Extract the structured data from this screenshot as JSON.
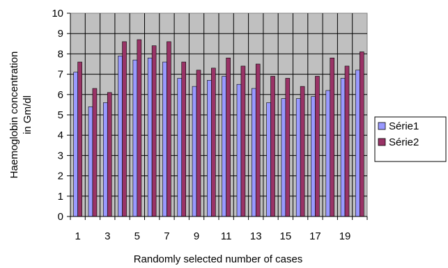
{
  "chart_data": {
    "type": "bar",
    "categories": [
      "1",
      "2",
      "3",
      "4",
      "5",
      "6",
      "7",
      "8",
      "9",
      "10",
      "11",
      "12",
      "13",
      "14",
      "15",
      "16",
      "17",
      "18",
      "19",
      "20"
    ],
    "x_tick_labels": [
      "1",
      "",
      "3",
      "",
      "5",
      "",
      "7",
      "",
      "9",
      "",
      "11",
      "",
      "13",
      "",
      "15",
      "",
      "17",
      "",
      "19",
      ""
    ],
    "series": [
      {
        "name": "Série1",
        "color": "#9999ff",
        "values": [
          7.1,
          5.4,
          5.6,
          7.9,
          7.7,
          7.8,
          7.6,
          6.8,
          6.4,
          6.7,
          6.9,
          6.5,
          6.3,
          5.6,
          5.8,
          5.8,
          5.9,
          6.2,
          6.8,
          7.2
        ]
      },
      {
        "name": "Série2",
        "color": "#993366",
        "values": [
          7.6,
          6.3,
          6.1,
          8.6,
          8.7,
          8.4,
          8.6,
          7.6,
          7.2,
          7.3,
          7.8,
          7.4,
          7.5,
          6.9,
          6.8,
          6.4,
          6.9,
          7.8,
          7.4,
          8.1
        ]
      }
    ],
    "ylim": [
      0,
      10
    ],
    "yticks": [
      0,
      1,
      2,
      3,
      4,
      5,
      6,
      7,
      8,
      9,
      10
    ],
    "xlabel": "Randomly selected number of cases",
    "ylabel_line1": "Haemoglobin concentration",
    "ylabel_line2": "in Gm/dl",
    "grid": true,
    "plot_background": "#c0c0c0",
    "legend_position": "right"
  }
}
